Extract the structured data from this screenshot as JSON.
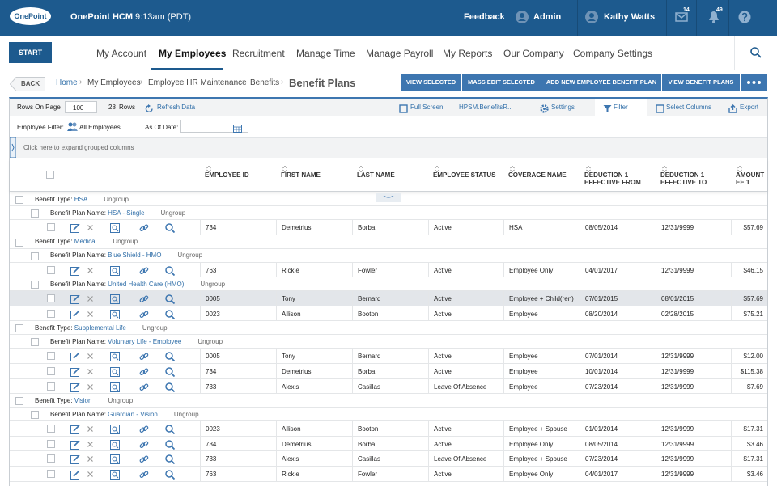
{
  "topbar": {
    "logo": "OnePoint",
    "product": "OnePoint HCM",
    "time": "9:13am (PDT)",
    "feedback": "Feedback",
    "admin": "Admin",
    "user": "Kathy Watts",
    "mail_count": "14",
    "notification_count": "49"
  },
  "nav": {
    "start": "START",
    "items": [
      "My Account",
      "My Employees",
      "Recruitment",
      "Manage Time",
      "Manage Payroll",
      "My Reports",
      "Our Company",
      "Company Settings"
    ]
  },
  "breadcrumb": {
    "back": "BACK",
    "items": [
      "Home",
      "My Employees",
      "Employee HR Maintenance",
      "Benefits"
    ],
    "current": "Benefit Plans"
  },
  "actions": [
    "VIEW SELECTED",
    "MASS EDIT SELECTED",
    "ADD NEW EMPLOYEE BENEFIT PLAN",
    "VIEW BENEFIT PLANS"
  ],
  "toolbar": {
    "rows_on_page_label": "Rows On Page",
    "rows_on_page": "100",
    "row_count": "28",
    "rows_label": "Rows",
    "refresh": "Refresh Data",
    "full_screen": "Full Screen",
    "view": "HPSM.BenefitsR...",
    "settings": "Settings",
    "filter": "Filter",
    "select_columns": "Select Columns",
    "export": "Export"
  },
  "filters": {
    "employee_filter_label": "Employee Filter:",
    "employee_filter": "All Employees",
    "as_of_label": "As Of Date:"
  },
  "grouping": "Click here to expand grouped columns",
  "columns": [
    "EMPLOYEE ID",
    "FIRST NAME",
    "LAST NAME",
    "EMPLOYEE STATUS",
    "COVERAGE NAME",
    "DEDUCTION 1 EFFECTIVE FROM",
    "DEDUCTION 1 EFFECTIVE TO",
    "AMOUNT EE 1"
  ],
  "groups": [
    {
      "label": "Benefit Type:",
      "name": "HSA",
      "ungroup": "Ungroup",
      "plans": [
        {
          "label": "Benefit Plan Name:",
          "name": "HSA - Single",
          "ungroup": "Ungroup",
          "rows": [
            [
              "734",
              "Demetrius",
              "Borba",
              "Active",
              "HSA",
              "08/05/2014",
              "12/31/9999",
              "$57.69"
            ]
          ]
        }
      ]
    },
    {
      "label": "Benefit Type:",
      "name": "Medical",
      "ungroup": "Ungroup",
      "plans": [
        {
          "label": "Benefit Plan Name:",
          "name": "Blue Shield - HMO",
          "ungroup": "Ungroup",
          "rows": [
            [
              "763",
              "Rickie",
              "Fowler",
              "Active",
              "Employee Only",
              "04/01/2017",
              "12/31/9999",
              "$46.15"
            ]
          ]
        },
        {
          "label": "Benefit Plan Name:",
          "name": "United Health Care (HMO)",
          "ungroup": "Ungroup",
          "rows": [
            [
              "0005",
              "Tony",
              "Bernard",
              "Active",
              "Employee + Child(ren)",
              "07/01/2015",
              "08/01/2015",
              "$57.69"
            ],
            [
              "0023",
              "Allison",
              "Booton",
              "Active",
              "Employee",
              "08/20/2014",
              "02/28/2015",
              "$75.21"
            ]
          ]
        }
      ]
    },
    {
      "label": "Benefit Type:",
      "name": "Supplemental Life",
      "ungroup": "Ungroup",
      "plans": [
        {
          "label": "Benefit Plan Name:",
          "name": "Voluntary Life - Employee",
          "ungroup": "Ungroup",
          "rows": [
            [
              "0005",
              "Tony",
              "Bernard",
              "Active",
              "Employee",
              "07/01/2014",
              "12/31/9999",
              "$12.00"
            ],
            [
              "734",
              "Demetrius",
              "Borba",
              "Active",
              "Employee",
              "10/01/2014",
              "12/31/9999",
              "$115.38"
            ],
            [
              "733",
              "Alexis",
              "Casillas",
              "Leave Of Absence",
              "Employee",
              "07/23/2014",
              "12/31/9999",
              "$7.69"
            ]
          ]
        }
      ]
    },
    {
      "label": "Benefit Type:",
      "name": "Vision",
      "ungroup": "Ungroup",
      "plans": [
        {
          "label": "Benefit Plan Name:",
          "name": "Guardian - Vision",
          "ungroup": "Ungroup",
          "rows": [
            [
              "0023",
              "Allison",
              "Booton",
              "Active",
              "Employee + Spouse",
              "01/01/2014",
              "12/31/9999",
              "$17.31"
            ],
            [
              "734",
              "Demetrius",
              "Borba",
              "Active",
              "Employee Only",
              "08/05/2014",
              "12/31/9999",
              "$3.46"
            ],
            [
              "733",
              "Alexis",
              "Casillas",
              "Leave Of Absence",
              "Employee + Spouse",
              "07/23/2014",
              "12/31/9999",
              "$17.31"
            ],
            [
              "763",
              "Rickie",
              "Fowler",
              "Active",
              "Employee Only",
              "04/01/2017",
              "12/31/9999",
              "$3.46"
            ]
          ]
        }
      ]
    }
  ]
}
